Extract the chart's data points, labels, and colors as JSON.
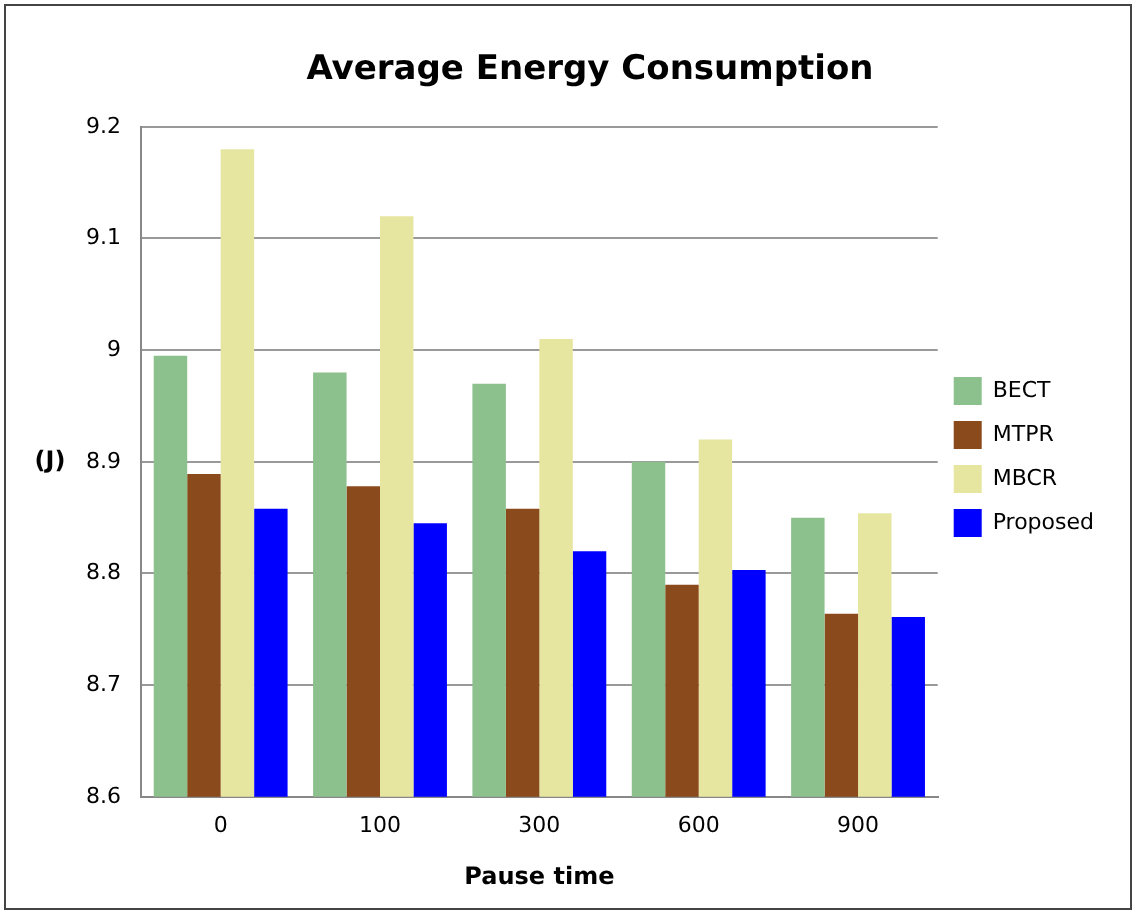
{
  "chart_data": {
    "type": "bar",
    "title": "Average Energy Consumption",
    "xlabel": "Pause time",
    "ylabel": "(J)",
    "categories": [
      "0",
      "100",
      "300",
      "600",
      "900"
    ],
    "series": [
      {
        "name": "BECT",
        "color": "#8cc08c",
        "values": [
          8.995,
          8.98,
          8.97,
          8.9,
          8.85
        ]
      },
      {
        "name": "MTPR",
        "color": "#8b4a1c",
        "values": [
          8.889,
          8.878,
          8.858,
          8.79,
          8.764
        ]
      },
      {
        "name": "MBCR",
        "color": "#e6e6a0",
        "values": [
          9.18,
          9.12,
          9.01,
          8.92,
          8.854
        ]
      },
      {
        "name": "Proposed",
        "color": "#0000ff",
        "values": [
          8.858,
          8.845,
          8.82,
          8.803,
          8.761
        ]
      }
    ],
    "ylim": [
      8.6,
      9.2
    ],
    "yticks": [
      8.6,
      8.7,
      8.8,
      8.9,
      9,
      9.1,
      9.2
    ],
    "grid": "y",
    "legend": "right"
  }
}
